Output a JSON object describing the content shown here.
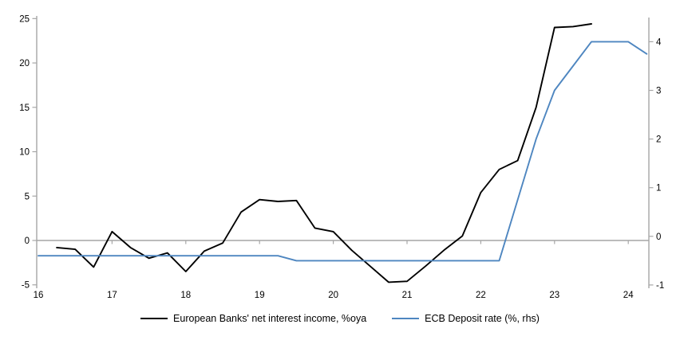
{
  "page": {
    "background": "#ffffff",
    "axis_color": "#a6a6a6",
    "text_color": "#000000"
  },
  "chart_data": {
    "type": "line",
    "title": "",
    "grid": false,
    "zero_line": true,
    "legend_position": "bottom",
    "x_axis": {
      "labels": [
        "16",
        "17",
        "18",
        "19",
        "20",
        "21",
        "22",
        "23",
        "24"
      ],
      "start_year": 2016,
      "range": [
        2016,
        2024.4
      ],
      "unit": "year"
    },
    "left_axis": {
      "ticks": [
        25,
        20,
        15,
        10,
        5,
        0,
        -5
      ],
      "range": [
        -5.5,
        25.3
      ]
    },
    "right_axis": {
      "ticks": [
        4,
        3,
        2,
        1,
        0,
        -1
      ],
      "range": [
        -1.1,
        4.55
      ]
    },
    "series": [
      {
        "name": "European Banks' net interest income, %oya",
        "color": "#000000",
        "axis": "left",
        "frequency": "quarterly",
        "points": [
          [
            2016.25,
            -0.8
          ],
          [
            2016.5,
            -1.0
          ],
          [
            2016.75,
            -3.0
          ],
          [
            2017.0,
            1.0
          ],
          [
            2017.25,
            -0.8
          ],
          [
            2017.5,
            -2.0
          ],
          [
            2017.75,
            -1.4
          ],
          [
            2018.0,
            -3.5
          ],
          [
            2018.25,
            -1.2
          ],
          [
            2018.5,
            -0.3
          ],
          [
            2018.75,
            3.2
          ],
          [
            2019.0,
            4.6
          ],
          [
            2019.25,
            4.4
          ],
          [
            2019.5,
            4.5
          ],
          [
            2019.75,
            1.4
          ],
          [
            2020.0,
            1.0
          ],
          [
            2020.25,
            -1.1
          ],
          [
            2020.5,
            -2.9
          ],
          [
            2020.75,
            -4.7
          ],
          [
            2021.0,
            -4.6
          ],
          [
            2021.25,
            -2.9
          ],
          [
            2021.5,
            -1.1
          ],
          [
            2021.75,
            0.5
          ],
          [
            2022.0,
            5.4
          ],
          [
            2022.25,
            8.0
          ],
          [
            2022.5,
            9.0
          ],
          [
            2022.75,
            15.0
          ],
          [
            2023.0,
            24.0
          ],
          [
            2023.25,
            24.1
          ],
          [
            2023.5,
            24.4
          ]
        ]
      },
      {
        "name": "ECB Deposit rate (%, rhs)",
        "color": "#4e86c0",
        "axis": "right",
        "frequency": "quarterly-step",
        "points": [
          [
            2016.0,
            -0.4
          ],
          [
            2019.25,
            -0.4
          ],
          [
            2019.5,
            -0.5
          ],
          [
            2022.25,
            -0.5
          ],
          [
            2022.5,
            0.75
          ],
          [
            2022.75,
            2.0
          ],
          [
            2023.0,
            3.0
          ],
          [
            2023.25,
            3.5
          ],
          [
            2023.5,
            4.0
          ],
          [
            2023.75,
            4.0
          ],
          [
            2024.0,
            4.0
          ],
          [
            2024.25,
            3.75
          ]
        ]
      }
    ]
  }
}
